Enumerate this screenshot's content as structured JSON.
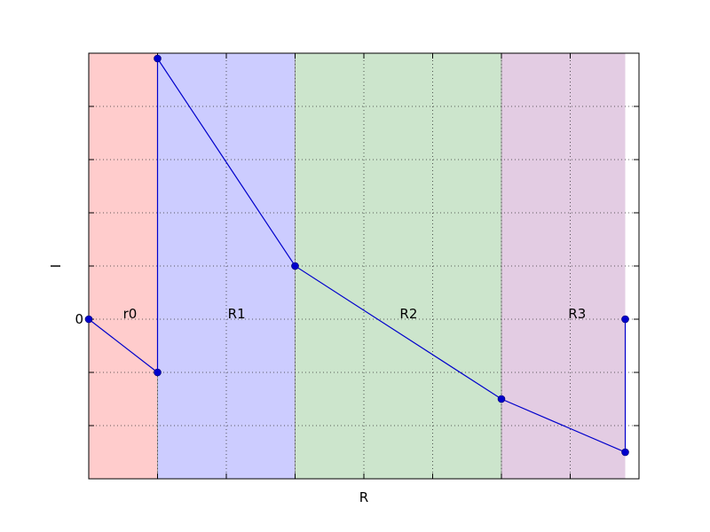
{
  "chart_data": {
    "type": "line",
    "title": "",
    "xlabel": "R",
    "ylabel": "I",
    "grid": true,
    "x_ticks": [
      0,
      1,
      2,
      3,
      4,
      5,
      6,
      7,
      8
    ],
    "y_ticks": [
      -3,
      -2,
      -1,
      0,
      1,
      2,
      3,
      4,
      5
    ],
    "y_tick_labels_shown": [
      {
        "value": 0,
        "label": "0"
      }
    ],
    "xlim": [
      0,
      8
    ],
    "ylim": [
      -3,
      5
    ],
    "regions": [
      {
        "label": "r0",
        "x_start": 0,
        "x_end": 1,
        "color": "#ffcccc"
      },
      {
        "label": "R1",
        "x_start": 1,
        "x_end": 3,
        "color": "#ccccff"
      },
      {
        "label": "R2",
        "x_start": 3,
        "x_end": 6,
        "color": "#cce5cc"
      },
      {
        "label": "R3",
        "x_start": 6,
        "x_end": 7.8,
        "color": "#e3cce3"
      }
    ],
    "series": [
      {
        "color": "#0000cc",
        "marker": "circle",
        "points": [
          {
            "x": 0,
            "y": 0
          },
          {
            "x": 1,
            "y": -1
          },
          {
            "x": 1,
            "y": 4.9
          },
          {
            "x": 3,
            "y": 1
          },
          {
            "x": 6,
            "y": -1.5
          },
          {
            "x": 7.8,
            "y": -2.5
          },
          {
            "x": 7.8,
            "y": 0
          }
        ]
      }
    ]
  }
}
